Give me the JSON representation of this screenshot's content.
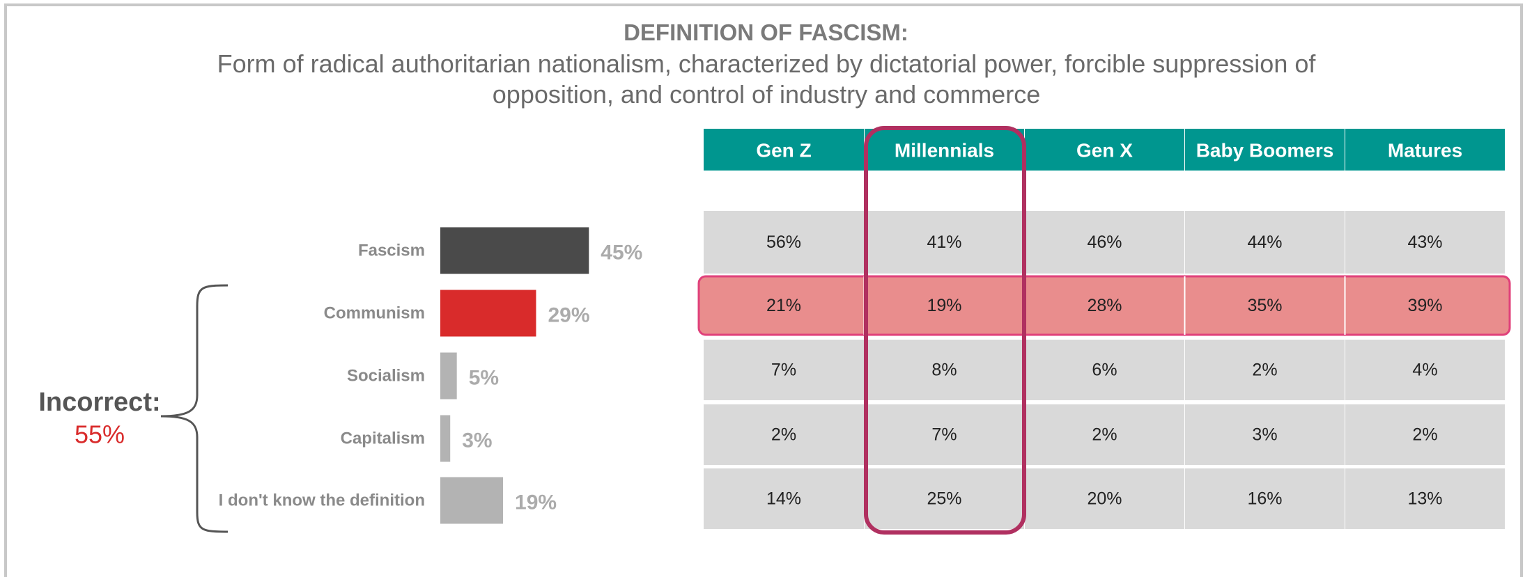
{
  "title": "DEFINITION OF FASCISM:",
  "subtitle": "Form of radical authoritarian nationalism, characterized by dictatorial power, forcible suppression of opposition, and control of industry and commerce",
  "chart_data": {
    "type": "bar",
    "orientation": "horizontal",
    "categories": [
      "Fascism",
      "Communism",
      "Socialism",
      "Capitalism",
      "I don't know the definition"
    ],
    "values": [
      45,
      29,
      5,
      3,
      19
    ],
    "value_labels": [
      "45%",
      "29%",
      "5%",
      "3%",
      "19%"
    ],
    "colors": [
      "#4a4a4a",
      "#d92b2b",
      "#b3b3b3",
      "#b3b3b3",
      "#b3b3b3"
    ]
  },
  "annotation": {
    "label": "Incorrect:",
    "value": "55%"
  },
  "table": {
    "header": [
      "Gen Z",
      "Millennials",
      "Gen X",
      "Baby Boomers",
      "Matures"
    ],
    "rows": [
      [
        "56%",
        "41%",
        "46%",
        "44%",
        "43%"
      ],
      [
        "21%",
        "19%",
        "28%",
        "35%",
        "39%"
      ],
      [
        "7%",
        "8%",
        "6%",
        "2%",
        "4%"
      ],
      [
        "2%",
        "7%",
        "2%",
        "3%",
        "2%"
      ],
      [
        "14%",
        "25%",
        "20%",
        "16%",
        "13%"
      ]
    ]
  }
}
